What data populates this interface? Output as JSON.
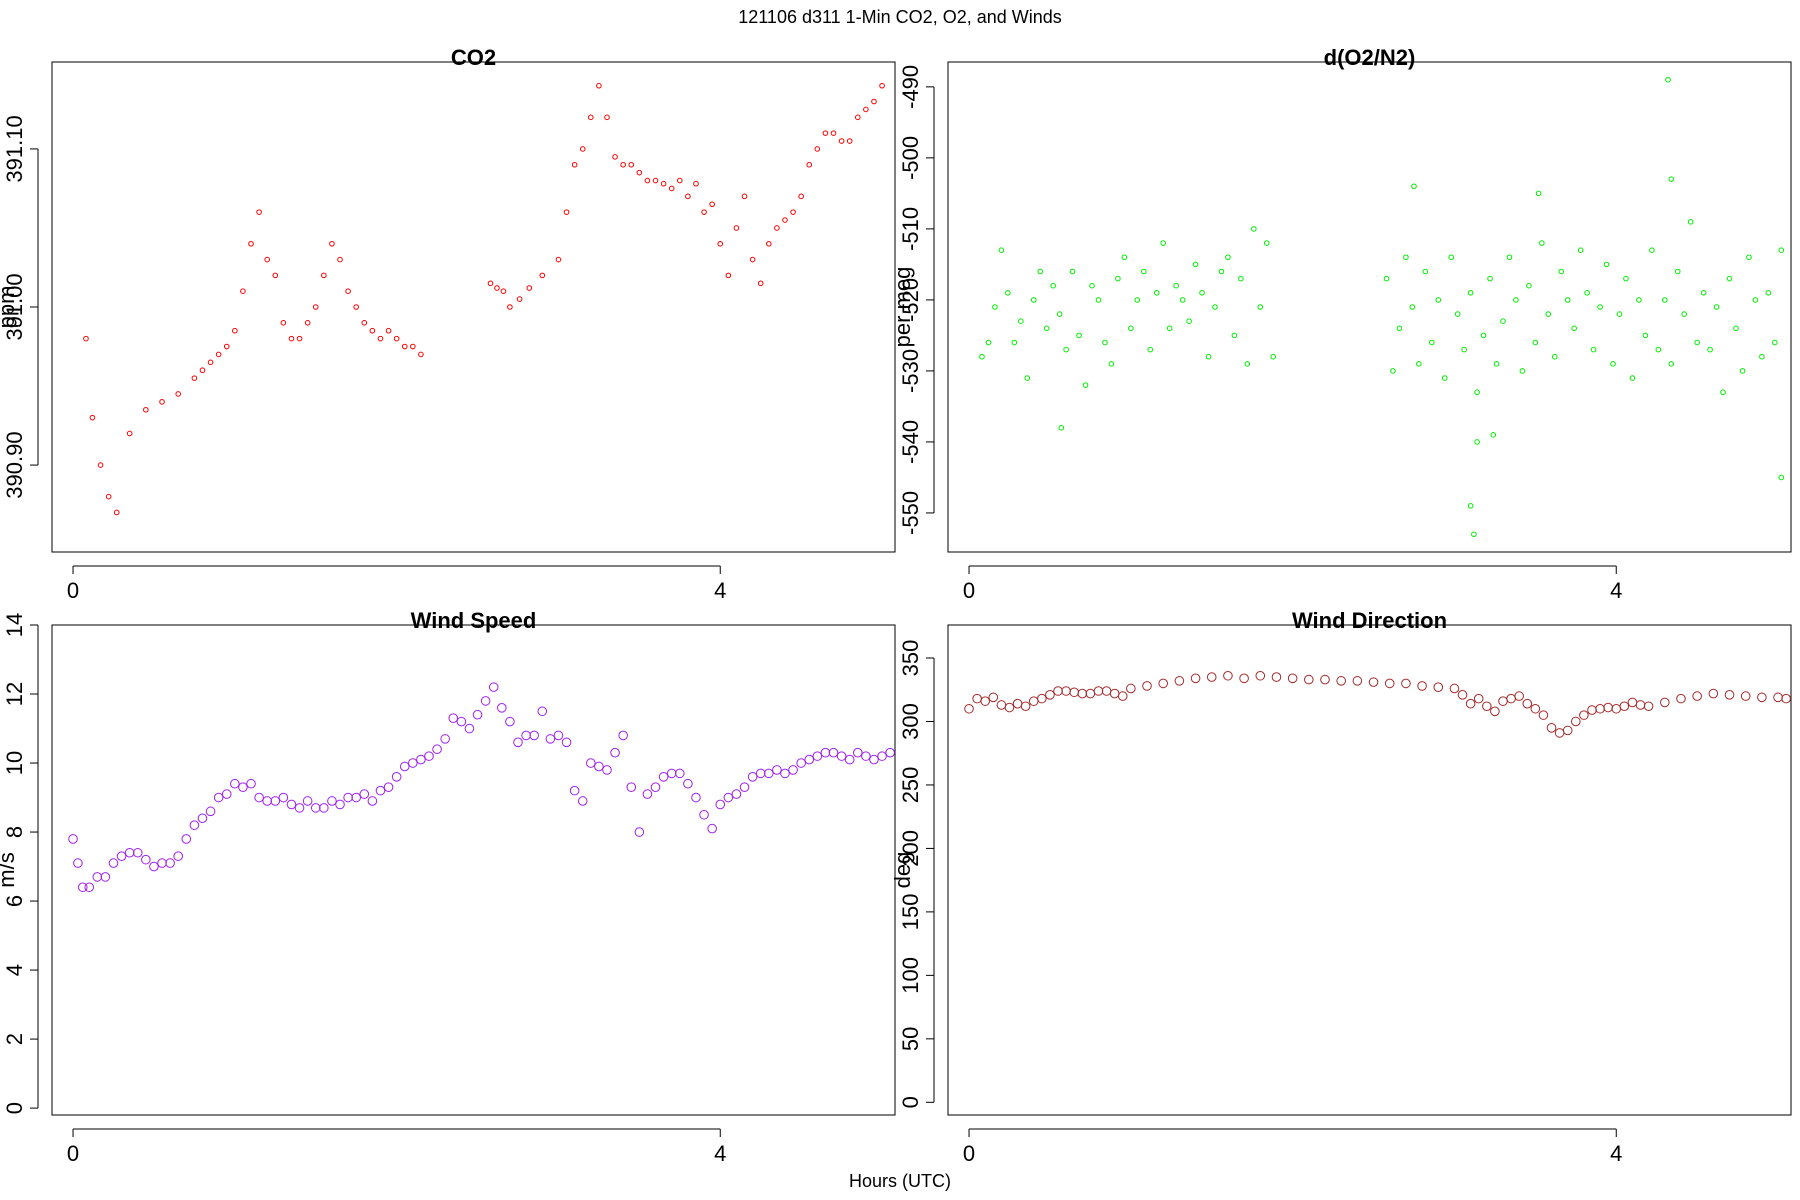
{
  "figure": {
    "title": "121106   d311   1-Min CO2, O2, and Winds",
    "xlabel": "Hours (UTC)"
  },
  "chart_data": [
    {
      "id": "co2",
      "type": "scatter",
      "title": "CO2",
      "xlabel": "",
      "ylabel": "ppm",
      "xlim": [
        -0.13,
        5.08
      ],
      "ylim": [
        390.845,
        391.155
      ],
      "xticks": [
        0,
        4
      ],
      "xtick_labels": [
        "0",
        "4"
      ],
      "yticks": [
        390.9,
        391.0,
        391.1
      ],
      "ytick_labels": [
        "390.90",
        "391.00",
        "391.10"
      ],
      "color": "#ff0000",
      "marker_size": "small",
      "segments": [
        {
          "x": [
            0.08,
            0.12,
            0.17,
            0.22,
            0.27,
            0.35,
            0.45,
            0.55,
            0.65,
            0.75,
            0.8,
            0.85,
            0.9,
            0.95,
            1.0,
            1.05,
            1.1,
            1.15,
            1.2,
            1.25,
            1.3,
            1.35,
            1.4,
            1.45,
            1.5,
            1.55,
            1.6,
            1.65,
            1.7,
            1.75,
            1.8,
            1.85,
            1.9,
            1.95,
            2.0,
            2.05,
            2.1,
            2.15
          ],
          "y": [
            390.98,
            390.93,
            390.9,
            390.88,
            390.87,
            390.92,
            390.935,
            390.94,
            390.945,
            390.955,
            390.96,
            390.965,
            390.97,
            390.975,
            390.985,
            391.01,
            391.04,
            391.06,
            391.03,
            391.02,
            390.99,
            390.98,
            390.98,
            390.99,
            391.0,
            391.02,
            391.04,
            391.03,
            391.01,
            391.0,
            390.99,
            390.985,
            390.98,
            390.985,
            390.98,
            390.975,
            390.975,
            390.97
          ]
        },
        {
          "x": [
            2.58,
            2.62,
            2.66,
            2.7,
            2.76,
            2.82,
            2.9,
            3.0,
            3.05,
            3.1,
            3.15,
            3.2,
            3.25,
            3.3,
            3.35,
            3.4,
            3.45,
            3.5,
            3.55,
            3.6,
            3.65,
            3.7,
            3.75,
            3.8,
            3.85,
            3.9,
            3.95,
            4.0,
            4.05,
            4.1,
            4.15,
            4.2,
            4.25,
            4.3,
            4.35,
            4.4,
            4.45,
            4.5,
            4.55,
            4.6,
            4.65,
            4.7,
            4.75,
            4.8,
            4.85,
            4.9,
            4.95,
            5.0
          ],
          "y": [
            391.015,
            391.012,
            391.01,
            391.0,
            391.005,
            391.012,
            391.02,
            391.03,
            391.06,
            391.09,
            391.1,
            391.12,
            391.14,
            391.12,
            391.095,
            391.09,
            391.09,
            391.085,
            391.08,
            391.08,
            391.078,
            391.075,
            391.08,
            391.07,
            391.078,
            391.06,
            391.065,
            391.04,
            391.02,
            391.05,
            391.07,
            391.03,
            391.015,
            391.04,
            391.05,
            391.055,
            391.06,
            391.07,
            391.09,
            391.1,
            391.11,
            391.11,
            391.105,
            391.105,
            391.12,
            391.125,
            391.13,
            391.14
          ]
        }
      ]
    },
    {
      "id": "o2",
      "type": "scatter",
      "title": "d(O2/N2)",
      "xlabel": "",
      "ylabel": "per meg",
      "xlim": [
        -0.13,
        5.08
      ],
      "ylim": [
        -555.5,
        -486.5
      ],
      "xticks": [
        0,
        4
      ],
      "xtick_labels": [
        "0",
        "4"
      ],
      "yticks": [
        -550,
        -540,
        -530,
        -520,
        -510,
        -500,
        -490
      ],
      "ytick_labels": [
        "-550",
        "-540",
        "-530",
        "-520",
        "-510",
        "-500",
        "-490"
      ],
      "color": "#00ee00",
      "marker_size": "small",
      "segments": [
        {
          "x": [
            0.08,
            0.12,
            0.16,
            0.2,
            0.24,
            0.28,
            0.32,
            0.36,
            0.4,
            0.44,
            0.48,
            0.52,
            0.56,
            0.6,
            0.64,
            0.68,
            0.72,
            0.76,
            0.8,
            0.84,
            0.88,
            0.92,
            0.96,
            1.0,
            1.04,
            1.08,
            1.12,
            1.16,
            1.2,
            1.24,
            1.28,
            1.32,
            1.36,
            1.4,
            1.44,
            1.48,
            1.52,
            1.56,
            1.6,
            1.64,
            1.68,
            1.72,
            1.76,
            1.8,
            1.84,
            1.88
          ],
          "y": [
            -528,
            -526,
            -521,
            -513,
            -519,
            -526,
            -523,
            -531,
            -520,
            -516,
            -524,
            -518,
            -522,
            -527,
            -516,
            -525,
            -532,
            -518,
            -520,
            -526,
            -529,
            -517,
            -514,
            -524,
            -520,
            -516,
            -527,
            -519,
            -512,
            -524,
            -518,
            -520,
            -523,
            -515,
            -519,
            -528,
            -521,
            -516,
            -514,
            -525,
            -517,
            -529,
            -510,
            -521,
            -512,
            -528
          ]
        },
        {
          "x": [
            2.58,
            2.62,
            2.66,
            2.7,
            2.74,
            2.78,
            2.82,
            2.86,
            2.9,
            2.94,
            2.98,
            3.02,
            3.06,
            3.1,
            3.14,
            3.18,
            3.22,
            3.26,
            3.3,
            3.34,
            3.38,
            3.42,
            3.46,
            3.5,
            3.54,
            3.58,
            3.62,
            3.66,
            3.7,
            3.74,
            3.78,
            3.82,
            3.86,
            3.9,
            3.94,
            3.98,
            4.02,
            4.06,
            4.1,
            4.14,
            4.18,
            4.22,
            4.26,
            4.3,
            4.34,
            4.38,
            4.42,
            4.46,
            4.5,
            4.54,
            4.58,
            4.62,
            4.66,
            4.7,
            4.74,
            4.78,
            4.82,
            4.86,
            4.9,
            4.94,
            4.98,
            5.02
          ],
          "y": [
            -517,
            -530,
            -524,
            -514,
            -521,
            -529,
            -516,
            -526,
            -520,
            -531,
            -514,
            -522,
            -527,
            -519,
            -533,
            -525,
            -517,
            -529,
            -523,
            -514,
            -520,
            -530,
            -518,
            -526,
            -512,
            -522,
            -528,
            -516,
            -520,
            -524,
            -513,
            -519,
            -527,
            -521,
            -515,
            -529,
            -522,
            -517,
            -531,
            -520,
            -525,
            -513,
            -527,
            -520,
            -529,
            -516,
            -522,
            -509,
            -526,
            -519,
            -527,
            -521,
            -533,
            -517,
            -524,
            -530,
            -514,
            -520,
            -528,
            -519,
            -526,
            -513
          ]
        }
      ],
      "outliers": [
        {
          "x": 3.12,
          "y": -553
        },
        {
          "x": 3.1,
          "y": -549
        },
        {
          "x": 3.14,
          "y": -540
        },
        {
          "x": 3.24,
          "y": -539
        },
        {
          "x": 4.32,
          "y": -489
        },
        {
          "x": 4.34,
          "y": -503
        },
        {
          "x": 5.02,
          "y": -545
        },
        {
          "x": 0.57,
          "y": -538
        },
        {
          "x": 2.75,
          "y": -504
        },
        {
          "x": 3.52,
          "y": -505
        }
      ]
    },
    {
      "id": "wspd",
      "type": "scatter",
      "title": "Wind Speed",
      "xlabel": "",
      "ylabel": "m/s",
      "xlim": [
        -0.13,
        5.08
      ],
      "ylim": [
        -0.2,
        14.0
      ],
      "xticks": [
        0,
        4
      ],
      "xtick_labels": [
        "0",
        "4"
      ],
      "yticks": [
        0,
        2,
        4,
        6,
        8,
        10,
        12,
        14
      ],
      "ytick_labels": [
        "0",
        "2",
        "4",
        "6",
        "8",
        "10",
        "12",
        "14"
      ],
      "color": "#a020f0",
      "marker_size": "large",
      "segments": [
        {
          "x": [
            0.0,
            0.03,
            0.06,
            0.1,
            0.15,
            0.2,
            0.25,
            0.3,
            0.35,
            0.4,
            0.45,
            0.5,
            0.55,
            0.6,
            0.65,
            0.7,
            0.75,
            0.8,
            0.85,
            0.9,
            0.95,
            1.0,
            1.05,
            1.1,
            1.15,
            1.2,
            1.25,
            1.3,
            1.35,
            1.4,
            1.45,
            1.5,
            1.55,
            1.6,
            1.65,
            1.7,
            1.75,
            1.8,
            1.85,
            1.9,
            1.95,
            2.0,
            2.05,
            2.1,
            2.15,
            2.2,
            2.25,
            2.3,
            2.35,
            2.4,
            2.45,
            2.5,
            2.55,
            2.6,
            2.65,
            2.7,
            2.75,
            2.8,
            2.85,
            2.9,
            2.95,
            3.0,
            3.05,
            3.1,
            3.15,
            3.2,
            3.25,
            3.3,
            3.35,
            3.4,
            3.45,
            3.5,
            3.55,
            3.6,
            3.65,
            3.7,
            3.75,
            3.8,
            3.85,
            3.9,
            3.95,
            4.0,
            4.05,
            4.1,
            4.15,
            4.2,
            4.25,
            4.3,
            4.35,
            4.4,
            4.45,
            4.5,
            4.55,
            4.6,
            4.65,
            4.7,
            4.75,
            4.8,
            4.85,
            4.9,
            4.95,
            5.0,
            5.05
          ],
          "y": [
            7.8,
            7.1,
            6.4,
            6.4,
            6.7,
            6.7,
            7.1,
            7.3,
            7.4,
            7.4,
            7.2,
            7.0,
            7.1,
            7.1,
            7.3,
            7.8,
            8.2,
            8.4,
            8.6,
            9.0,
            9.1,
            9.4,
            9.3,
            9.4,
            9.0,
            8.9,
            8.9,
            9.0,
            8.8,
            8.7,
            8.9,
            8.7,
            8.7,
            8.9,
            8.8,
            9.0,
            9.0,
            9.1,
            8.9,
            9.2,
            9.3,
            9.6,
            9.9,
            10.0,
            10.1,
            10.2,
            10.4,
            10.7,
            11.3,
            11.2,
            11.0,
            11.4,
            11.8,
            12.2,
            11.6,
            11.2,
            10.6,
            10.8,
            10.8,
            11.5,
            10.7,
            10.8,
            10.6,
            9.2,
            8.9,
            10.0,
            9.9,
            9.8,
            10.3,
            10.8,
            9.3,
            8.0,
            9.1,
            9.3,
            9.6,
            9.7,
            9.7,
            9.4,
            9.0,
            8.5,
            8.1,
            8.8,
            9.0,
            9.1,
            9.3,
            9.6,
            9.7,
            9.7,
            9.8,
            9.7,
            9.8,
            10.0,
            10.1,
            10.2,
            10.3,
            10.3,
            10.2,
            10.1,
            10.3,
            10.2,
            10.1,
            10.2,
            10.3
          ]
        }
      ]
    },
    {
      "id": "wdir",
      "type": "scatter",
      "title": "Wind Direction",
      "xlabel": "",
      "ylabel": "deg",
      "xlim": [
        -0.13,
        5.08
      ],
      "ylim": [
        -10,
        376
      ],
      "xticks": [
        0,
        4
      ],
      "xtick_labels": [
        "0",
        "4"
      ],
      "yticks": [
        0,
        50,
        100,
        150,
        200,
        250,
        300,
        350
      ],
      "ytick_labels": [
        "0",
        "50",
        "100",
        "150",
        "200",
        "250",
        "300",
        "350"
      ],
      "color": "#a52a2a",
      "marker_size": "large",
      "segments": [
        {
          "x": [
            0.0,
            0.05,
            0.1,
            0.15,
            0.2,
            0.25,
            0.3,
            0.35,
            0.4,
            0.45,
            0.5,
            0.55,
            0.6,
            0.65,
            0.7,
            0.75,
            0.8,
            0.85,
            0.9,
            0.95,
            1.0,
            1.1,
            1.2,
            1.3,
            1.4,
            1.5,
            1.6,
            1.7,
            1.8,
            1.9,
            2.0,
            2.1,
            2.2,
            2.3,
            2.4,
            2.5,
            2.6,
            2.7,
            2.8,
            2.9,
            3.0,
            3.05,
            3.1,
            3.15,
            3.2,
            3.25,
            3.3,
            3.35,
            3.4,
            3.45,
            3.5,
            3.55,
            3.6,
            3.65,
            3.7,
            3.75,
            3.8,
            3.85,
            3.9,
            3.95,
            4.0,
            4.05,
            4.1,
            4.15,
            4.2,
            4.3,
            4.4,
            4.5,
            4.6,
            4.7,
            4.8,
            4.9,
            5.0,
            5.05
          ],
          "y": [
            310,
            318,
            316,
            319,
            313,
            311,
            314,
            312,
            316,
            318,
            321,
            324,
            324,
            323,
            322,
            322,
            324,
            324,
            322,
            320,
            326,
            328,
            330,
            332,
            334,
            335,
            336,
            334,
            336,
            335,
            334,
            333,
            333,
            332,
            332,
            331,
            330,
            330,
            328,
            327,
            326,
            321,
            314,
            318,
            312,
            308,
            316,
            318,
            320,
            314,
            310,
            305,
            295,
            291,
            293,
            300,
            305,
            309,
            310,
            311,
            310,
            312,
            315,
            313,
            312,
            315,
            318,
            320,
            322,
            321,
            320,
            319,
            319,
            318
          ]
        }
      ]
    }
  ]
}
